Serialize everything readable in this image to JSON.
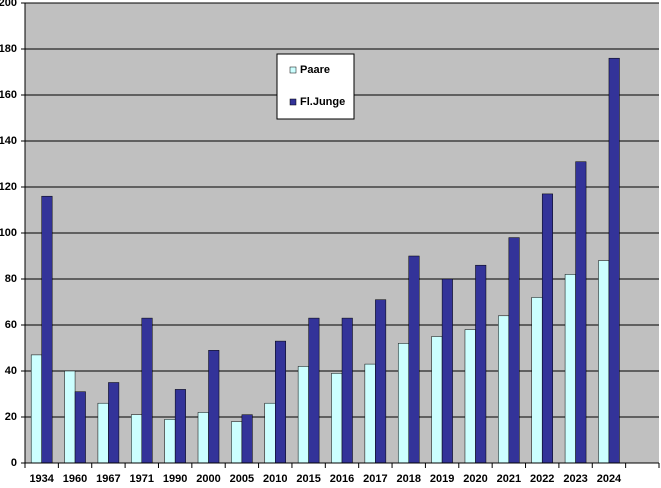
{
  "chart_data": {
    "type": "bar",
    "categories": [
      "1934",
      "1960",
      "1967",
      "1971",
      "1990",
      "2000",
      "2005",
      "2010",
      "2015",
      "2016",
      "2017",
      "2018",
      "2019",
      "2020",
      "2021",
      "2022",
      "2023",
      "2024",
      null
    ],
    "series": [
      {
        "name": "Paare",
        "color": "#ccffff",
        "values": [
          47,
          40,
          26,
          21,
          19,
          22,
          18,
          26,
          42,
          39,
          43,
          52,
          55,
          58,
          64,
          72,
          82,
          88,
          null
        ]
      },
      {
        "name": "Fl.Junge",
        "color": "#333399",
        "values": [
          116,
          31,
          35,
          63,
          32,
          49,
          21,
          53,
          63,
          63,
          71,
          90,
          80,
          86,
          98,
          117,
          131,
          176,
          null
        ]
      }
    ],
    "ylim": [
      0,
      200
    ],
    "yticks": [
      0,
      20,
      40,
      60,
      80,
      100,
      120,
      140,
      160,
      180,
      200
    ],
    "grid": true
  }
}
